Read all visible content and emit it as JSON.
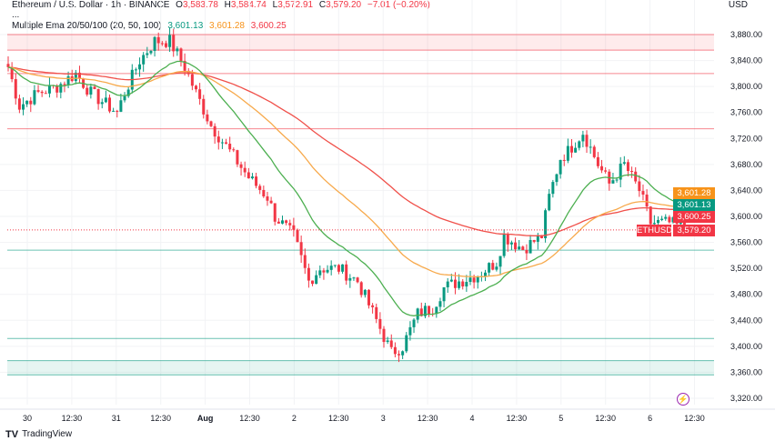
{
  "header": {
    "symbol": "Ethereum / U.S. Dollar · 1h · BINANCE",
    "o_label": "O",
    "o": "3,583.78",
    "h_label": "H",
    "h": "3,584.74",
    "l_label": "L",
    "l": "3,572.91",
    "c_label": "C",
    "c": "3,579.20",
    "change": "−7.01 (−0.20%)",
    "more": "...",
    "indicator": "Multiple Ema 20/50/100 (20, 50, 100)",
    "ema20": "3,601.13",
    "ema50": "3,601.28",
    "ema100": "3,600.25"
  },
  "currency": "USD",
  "tags": {
    "ema50": "3,601.28",
    "ema20": "3,601.13",
    "ema100": "3,600.25",
    "symbol": "ETHUSD",
    "last": "3,579.20"
  },
  "brand": "TradingView",
  "colors": {
    "up": "#089981",
    "down": "#f23645",
    "ema20": "#4caf50",
    "ema50": "#f7a94b",
    "ema100": "#f0504a"
  },
  "chart_data": {
    "type": "candlestick",
    "ylim": [
      3300,
      3900
    ],
    "yticks": [
      "3,880.00",
      "3,840.00",
      "3,800.00",
      "3,760.00",
      "3,720.00",
      "3,680.00",
      "3,640.00",
      "3,600.00",
      "3,560.00",
      "3,520.00",
      "3,480.00",
      "3,440.00",
      "3,400.00",
      "3,360.00",
      "3,320.00"
    ],
    "ytick_values": [
      3880,
      3840,
      3800,
      3760,
      3720,
      3680,
      3640,
      3600,
      3560,
      3520,
      3480,
      3440,
      3400,
      3360,
      3320
    ],
    "xticks": [
      "30",
      "12:30",
      "31",
      "12:30",
      "Aug",
      "12:30",
      "2",
      "12:30",
      "3",
      "12:30",
      "4",
      "12:30",
      "5",
      "12:30",
      "6",
      "12:30"
    ],
    "hours_total": 181,
    "keypoints_hour_close": [
      [
        0,
        3830
      ],
      [
        3,
        3770
      ],
      [
        8,
        3790
      ],
      [
        13,
        3800
      ],
      [
        18,
        3820
      ],
      [
        22,
        3790
      ],
      [
        29,
        3760
      ],
      [
        31,
        3790
      ],
      [
        35,
        3840
      ],
      [
        39,
        3870
      ],
      [
        43,
        3870
      ],
      [
        47,
        3830
      ],
      [
        50,
        3790
      ],
      [
        54,
        3740
      ],
      [
        59,
        3700
      ],
      [
        64,
        3660
      ],
      [
        69,
        3630
      ],
      [
        71,
        3600
      ],
      [
        76,
        3570
      ],
      [
        80,
        3500
      ],
      [
        83,
        3520
      ],
      [
        88,
        3520
      ],
      [
        93,
        3500
      ],
      [
        98,
        3440
      ],
      [
        102,
        3390
      ],
      [
        105,
        3400
      ],
      [
        109,
        3450
      ],
      [
        113,
        3460
      ],
      [
        116,
        3490
      ],
      [
        120,
        3500
      ],
      [
        125,
        3510
      ],
      [
        130,
        3530
      ],
      [
        132,
        3570
      ],
      [
        137,
        3550
      ],
      [
        142,
        3570
      ],
      [
        144,
        3630
      ],
      [
        147,
        3690
      ],
      [
        149,
        3700
      ],
      [
        153,
        3730
      ],
      [
        157,
        3680
      ],
      [
        160,
        3650
      ],
      [
        164,
        3680
      ],
      [
        168,
        3640
      ],
      [
        171,
        3590
      ],
      [
        176,
        3590
      ],
      [
        181,
        3579
      ]
    ],
    "levels": [
      {
        "price": 3880,
        "type": "resistance-zone",
        "to": 3856
      },
      {
        "price": 3820,
        "type": "resistance"
      },
      {
        "price": 3735,
        "type": "resistance"
      },
      {
        "price": 3548,
        "type": "support"
      },
      {
        "price": 3412,
        "type": "support"
      },
      {
        "price": 3378,
        "type": "support-zone",
        "to": 3356
      }
    ],
    "series": [
      {
        "name": "EMA 20",
        "period": 20
      },
      {
        "name": "EMA 50",
        "period": 50
      },
      {
        "name": "EMA 100",
        "period": 100
      }
    ]
  }
}
